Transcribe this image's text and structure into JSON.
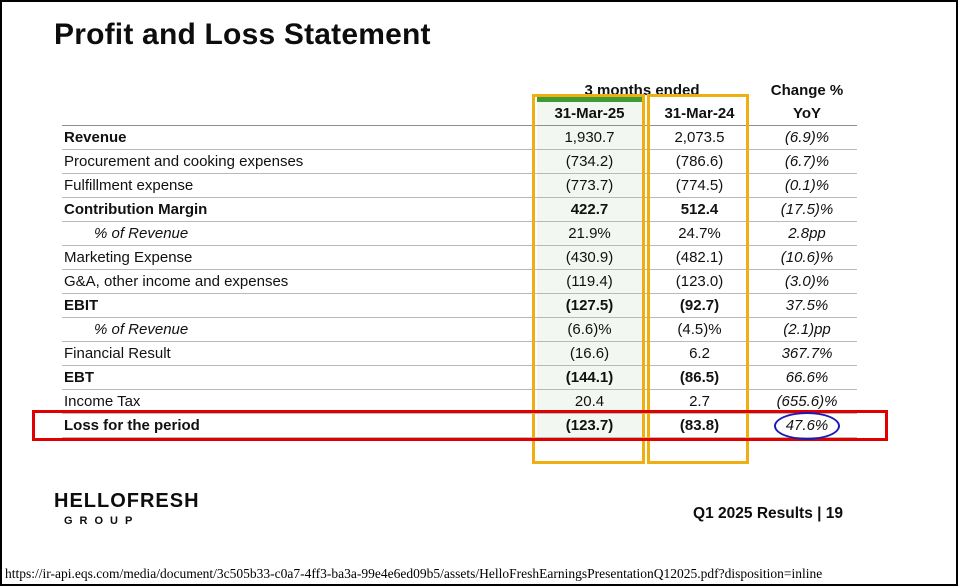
{
  "page": {
    "title": "Profit and Loss Statement",
    "logo": {
      "line1": "HELLOFRESH",
      "line2": "GROUP"
    },
    "footer_right": "Q1 2025 Results | 19",
    "source_url": "https://ir-api.eqs.com/media/document/3c505b33-c0a7-4ff3-ba3a-99e4e6ed09b5/assets/HelloFreshEarningsPresentationQ12025.pdf?disposition=inline"
  },
  "table": {
    "group_header": "3 months ended",
    "change_header": "Change %",
    "columns": [
      "31-Mar-25",
      "31-Mar-24",
      "YoY"
    ],
    "rows": [
      {
        "label": "Revenue",
        "v1": "1,930.7",
        "v2": "2,073.5",
        "yoy": "(6.9)%"
      },
      {
        "label": "Procurement and cooking expenses",
        "v1": "(734.2)",
        "v2": "(786.6)",
        "yoy": "(6.7)%"
      },
      {
        "label": "Fulfillment expense",
        "v1": "(773.7)",
        "v2": "(774.5)",
        "yoy": "(0.1)%"
      },
      {
        "label": "Contribution Margin",
        "v1": "422.7",
        "v2": "512.4",
        "yoy": "(17.5)%"
      },
      {
        "label": "% of Revenue",
        "v1": "21.9%",
        "v2": "24.7%",
        "yoy": "2.8pp"
      },
      {
        "label": "Marketing Expense",
        "v1": "(430.9)",
        "v2": "(482.1)",
        "yoy": "(10.6)%"
      },
      {
        "label": "G&A, other income and expenses",
        "v1": "(119.4)",
        "v2": "(123.0)",
        "yoy": "(3.0)%"
      },
      {
        "label": "EBIT",
        "v1": "(127.5)",
        "v2": "(92.7)",
        "yoy": "37.5%"
      },
      {
        "label": "% of Revenue",
        "v1": "(6.6)%",
        "v2": "(4.5)%",
        "yoy": "(2.1)pp"
      },
      {
        "label": "Financial Result",
        "v1": "(16.6)",
        "v2": "6.2",
        "yoy": "367.7%"
      },
      {
        "label": "EBT",
        "v1": "(144.1)",
        "v2": "(86.5)",
        "yoy": "66.6%"
      },
      {
        "label": "Income Tax",
        "v1": "20.4",
        "v2": "2.7",
        "yoy": "(655.6)%"
      },
      {
        "label": "Loss for the period",
        "v1": "(123.7)",
        "v2": "(83.8)",
        "yoy": "47.6%"
      }
    ]
  },
  "annotations": {
    "green_bar": "#3f9c35",
    "highlight_box": "#efae12",
    "red_box": "#e00000",
    "blue_circle": "#1a1ab8"
  }
}
